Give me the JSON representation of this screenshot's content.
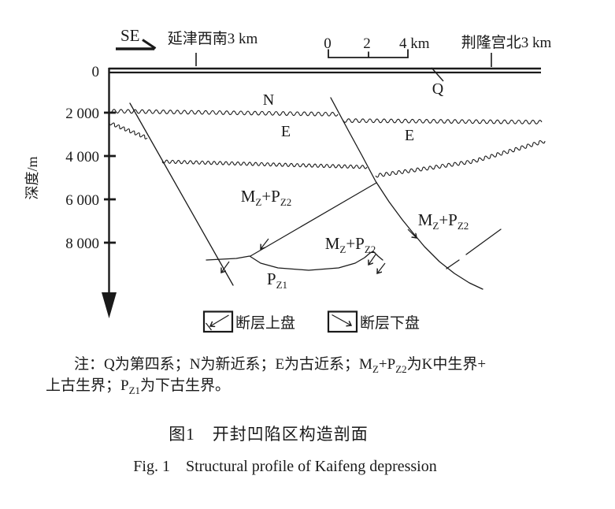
{
  "header": {
    "direction_label": "SE",
    "location_left": "延津西南3 km",
    "location_right": "荆隆宫北3 km",
    "scale_bar": {
      "tick0": "0",
      "tick2": "2",
      "tick4": "4 km"
    }
  },
  "axis": {
    "title": "深度/m",
    "ticks": [
      "0",
      "2 000",
      "4 000",
      "6 000",
      "8 000"
    ]
  },
  "strata_labels": {
    "q": "Q",
    "n": "N",
    "e_left": "E",
    "e_right": "E",
    "m": "M",
    "m_sub": "Z",
    "plus_p": "+P",
    "pz2_sub": "Z2",
    "p": "P",
    "pz1_sub": "Z1"
  },
  "legend": {
    "hanging_wall": "断层上盘",
    "footwall": "断层下盘"
  },
  "note": {
    "l1a": "注：Q为第四系；N为新近系；E为古近系；M",
    "l1b": "Z",
    "l1c": "+P",
    "l1d": "Z2",
    "l1e": "为K中生界+",
    "l2a": "上古生界；P",
    "l2b": "Z1",
    "l2c": "为下古生界。"
  },
  "caption": {
    "zh": "图1　开封凹陷区构造剖面",
    "en": "Fig. 1　Structural profile of Kaifeng depression"
  }
}
